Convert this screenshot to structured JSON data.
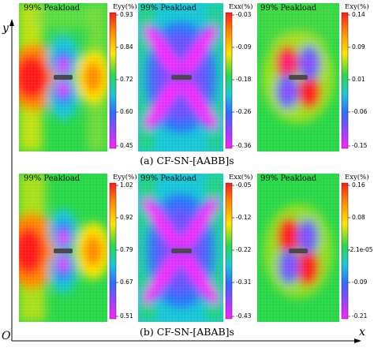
{
  "axes": {
    "y_label": "y",
    "x_label": "x",
    "origin_label": "O"
  },
  "rows": [
    {
      "caption": "(a)  CF-SN-[AABB]s",
      "panels": [
        {
          "label": "99% Peakload",
          "colorbar_title": "Eyy(%)",
          "ticks": [
            "0.93",
            "0.84",
            "0.72",
            "0.60",
            "0.45"
          ]
        },
        {
          "label": "99% Peakload",
          "colorbar_title": "Exx(%)",
          "ticks": [
            "-0.03",
            "-0.09",
            "-0.18",
            "-0.26",
            "-0.36"
          ]
        },
        {
          "label": "99% Peakload",
          "colorbar_title": "Exy(%)",
          "ticks": [
            "0.14",
            "0.09",
            "0.01",
            "-0.06",
            "-0.15"
          ]
        }
      ]
    },
    {
      "caption": "(b)  CF-SN-[ABAB]s",
      "panels": [
        {
          "label": "99% Peakload",
          "colorbar_title": "Eyy(%)",
          "ticks": [
            "1.02",
            "0.92",
            "0.79",
            "0.67",
            "0.51"
          ]
        },
        {
          "label": "99% Peakload",
          "colorbar_title": "Exx(%)",
          "ticks": [
            "-0.05",
            "-0.12",
            "-0.22",
            "-0.31",
            "-0.43"
          ]
        },
        {
          "label": "99% Peakload",
          "colorbar_title": "Exy(%)",
          "ticks": [
            "0.16",
            "0.08",
            "-2.1e-05",
            "-0.09",
            "-0.21"
          ]
        }
      ]
    }
  ],
  "colormap": [
    "#ff1a1a",
    "#ff8a00",
    "#ffe600",
    "#2bd84a",
    "#1ac8d8",
    "#2f6bff",
    "#a040ff",
    "#ff22ff"
  ]
}
